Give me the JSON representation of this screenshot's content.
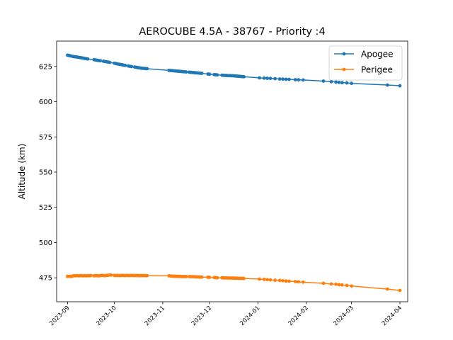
{
  "chart_data": {
    "type": "line",
    "title": "AEROCUBE 4.5A - 38767 - Priority :4",
    "xlabel": "",
    "ylabel": "Altitude (km)",
    "xlim": [
      "2023-08-25",
      "2024-04-06"
    ],
    "ylim": [
      458,
      643
    ],
    "x_ticks": [
      "2023-09",
      "2023-10",
      "2023-11",
      "2023-12",
      "2024-01",
      "2024-02",
      "2024-03",
      "2024-04"
    ],
    "y_ticks": [
      475,
      500,
      525,
      550,
      575,
      600,
      625
    ],
    "grid": false,
    "legend_position": "top-right",
    "series": [
      {
        "name": "Apogee",
        "color": "#1f77b4",
        "marker": "circle",
        "points": [
          [
            "2023-09-01",
            633.0
          ],
          [
            "2023-09-02",
            632.8
          ],
          [
            "2023-09-03",
            632.5
          ],
          [
            "2023-09-04",
            632.2
          ],
          [
            "2023-09-05",
            632.0
          ],
          [
            "2023-09-06",
            631.8
          ],
          [
            "2023-09-07",
            631.7
          ],
          [
            "2023-09-08",
            631.5
          ],
          [
            "2023-09-09",
            631.3
          ],
          [
            "2023-09-10",
            631.1
          ],
          [
            "2023-09-11",
            630.9
          ],
          [
            "2023-09-12",
            630.7
          ],
          [
            "2023-09-13",
            630.5
          ],
          [
            "2023-09-14",
            630.3
          ],
          [
            "2023-09-18",
            629.8
          ],
          [
            "2023-09-19",
            629.6
          ],
          [
            "2023-09-20",
            629.4
          ],
          [
            "2023-09-21",
            629.2
          ],
          [
            "2023-09-22",
            629.0
          ],
          [
            "2023-09-24",
            628.7
          ],
          [
            "2023-09-25",
            628.5
          ],
          [
            "2023-09-26",
            628.3
          ],
          [
            "2023-09-27",
            628.1
          ],
          [
            "2023-09-28",
            627.9
          ],
          [
            "2023-10-01",
            627.3
          ],
          [
            "2023-10-02",
            627.0
          ],
          [
            "2023-10-03",
            626.8
          ],
          [
            "2023-10-04",
            626.6
          ],
          [
            "2023-10-05",
            626.4
          ],
          [
            "2023-10-06",
            626.2
          ],
          [
            "2023-10-07",
            625.9
          ],
          [
            "2023-10-08",
            625.7
          ],
          [
            "2023-10-10",
            625.3
          ],
          [
            "2023-10-11",
            625.1
          ],
          [
            "2023-10-12",
            624.9
          ],
          [
            "2023-10-14",
            624.6
          ],
          [
            "2023-10-15",
            624.4
          ],
          [
            "2023-10-16",
            624.2
          ],
          [
            "2023-10-17",
            624.0
          ],
          [
            "2023-10-18",
            623.8
          ],
          [
            "2023-10-19",
            623.7
          ],
          [
            "2023-10-20",
            623.6
          ],
          [
            "2023-10-21",
            623.5
          ],
          [
            "2023-10-22",
            623.4
          ],
          [
            "2023-11-05",
            622.2
          ],
          [
            "2023-11-06",
            622.1
          ],
          [
            "2023-11-07",
            622.0
          ],
          [
            "2023-11-08",
            621.9
          ],
          [
            "2023-11-09",
            621.8
          ],
          [
            "2023-11-10",
            621.7
          ],
          [
            "2023-11-11",
            621.6
          ],
          [
            "2023-11-12",
            621.5
          ],
          [
            "2023-11-13",
            621.4
          ],
          [
            "2023-11-14",
            621.3
          ],
          [
            "2023-11-15",
            621.2
          ],
          [
            "2023-11-16",
            621.1
          ],
          [
            "2023-11-18",
            620.9
          ],
          [
            "2023-11-19",
            620.8
          ],
          [
            "2023-11-20",
            620.7
          ],
          [
            "2023-11-21",
            620.6
          ],
          [
            "2023-11-22",
            620.5
          ],
          [
            "2023-11-23",
            620.4
          ],
          [
            "2023-11-24",
            620.3
          ],
          [
            "2023-11-25",
            620.2
          ],
          [
            "2023-11-26",
            620.1
          ],
          [
            "2023-11-30",
            619.6
          ],
          [
            "2023-12-01",
            619.5
          ],
          [
            "2023-12-04",
            619.2
          ],
          [
            "2023-12-05",
            619.1
          ],
          [
            "2023-12-06",
            619.0
          ],
          [
            "2023-12-09",
            618.8
          ],
          [
            "2023-12-10",
            618.7
          ],
          [
            "2023-12-11",
            618.6
          ],
          [
            "2023-12-12",
            618.6
          ],
          [
            "2023-12-13",
            618.5
          ],
          [
            "2023-12-14",
            618.5
          ],
          [
            "2023-12-15",
            618.4
          ],
          [
            "2023-12-16",
            618.4
          ],
          [
            "2023-12-17",
            618.3
          ],
          [
            "2023-12-18",
            618.2
          ],
          [
            "2023-12-19",
            618.1
          ],
          [
            "2023-12-20",
            618.0
          ],
          [
            "2023-12-21",
            617.9
          ],
          [
            "2023-12-22",
            617.8
          ],
          [
            "2023-12-23",
            617.7
          ],
          [
            "2024-01-02",
            616.9
          ],
          [
            "2024-01-05",
            616.7
          ],
          [
            "2024-01-07",
            616.6
          ],
          [
            "2024-01-09",
            616.5
          ],
          [
            "2024-01-12",
            616.3
          ],
          [
            "2024-01-15",
            616.1
          ],
          [
            "2024-01-17",
            616.0
          ],
          [
            "2024-01-19",
            615.9
          ],
          [
            "2024-01-21",
            615.8
          ],
          [
            "2024-01-25",
            615.6
          ],
          [
            "2024-01-27",
            615.5
          ],
          [
            "2024-01-30",
            615.4
          ],
          [
            "2024-02-12",
            614.6
          ],
          [
            "2024-02-17",
            614.2
          ],
          [
            "2024-02-20",
            613.9
          ],
          [
            "2024-02-22",
            613.7
          ],
          [
            "2024-02-24",
            613.5
          ],
          [
            "2024-02-27",
            613.3
          ],
          [
            "2024-03-01",
            613.0
          ],
          [
            "2024-03-24",
            611.8
          ],
          [
            "2024-04-01",
            611.3
          ]
        ]
      },
      {
        "name": "Perigee",
        "color": "#ff7f0e",
        "marker": "circle",
        "points": [
          [
            "2023-09-01",
            476.0
          ],
          [
            "2023-09-02",
            476.1
          ],
          [
            "2023-09-03",
            476.0
          ],
          [
            "2023-09-04",
            476.1
          ],
          [
            "2023-09-05",
            476.5
          ],
          [
            "2023-09-06",
            476.4
          ],
          [
            "2023-09-07",
            476.5
          ],
          [
            "2023-09-08",
            476.4
          ],
          [
            "2023-09-09",
            476.5
          ],
          [
            "2023-09-10",
            476.5
          ],
          [
            "2023-09-11",
            476.4
          ],
          [
            "2023-09-12",
            476.5
          ],
          [
            "2023-09-13",
            476.4
          ],
          [
            "2023-09-14",
            476.5
          ],
          [
            "2023-09-15",
            476.5
          ],
          [
            "2023-09-16",
            476.6
          ],
          [
            "2023-09-18",
            476.4
          ],
          [
            "2023-09-19",
            476.5
          ],
          [
            "2023-09-20",
            476.5
          ],
          [
            "2023-09-21",
            476.4
          ],
          [
            "2023-09-22",
            476.6
          ],
          [
            "2023-09-23",
            476.7
          ],
          [
            "2023-09-24",
            476.6
          ],
          [
            "2023-09-25",
            476.5
          ],
          [
            "2023-09-26",
            476.7
          ],
          [
            "2023-09-27",
            476.8
          ],
          [
            "2023-09-28",
            477.0
          ],
          [
            "2023-09-29",
            476.9
          ],
          [
            "2023-10-01",
            476.7
          ],
          [
            "2023-10-02",
            476.6
          ],
          [
            "2023-10-03",
            476.7
          ],
          [
            "2023-10-04",
            476.6
          ],
          [
            "2023-10-05",
            476.6
          ],
          [
            "2023-10-06",
            476.7
          ],
          [
            "2023-10-07",
            476.6
          ],
          [
            "2023-10-08",
            476.6
          ],
          [
            "2023-10-09",
            476.7
          ],
          [
            "2023-10-10",
            476.6
          ],
          [
            "2023-10-11",
            476.6
          ],
          [
            "2023-10-12",
            476.7
          ],
          [
            "2023-10-13",
            476.6
          ],
          [
            "2023-10-14",
            476.6
          ],
          [
            "2023-10-15",
            476.6
          ],
          [
            "2023-10-16",
            476.6
          ],
          [
            "2023-10-17",
            476.5
          ],
          [
            "2023-10-18",
            476.6
          ],
          [
            "2023-10-19",
            476.5
          ],
          [
            "2023-10-20",
            476.6
          ],
          [
            "2023-10-21",
            476.5
          ],
          [
            "2023-10-22",
            476.5
          ],
          [
            "2023-11-05",
            476.4
          ],
          [
            "2023-11-06",
            476.3
          ],
          [
            "2023-11-07",
            476.2
          ],
          [
            "2023-11-08",
            476.1
          ],
          [
            "2023-11-09",
            476.1
          ],
          [
            "2023-11-10",
            476.0
          ],
          [
            "2023-11-11",
            476.0
          ],
          [
            "2023-11-12",
            476.0
          ],
          [
            "2023-11-13",
            475.9
          ],
          [
            "2023-11-14",
            475.9
          ],
          [
            "2023-11-15",
            475.9
          ],
          [
            "2023-11-16",
            475.9
          ],
          [
            "2023-11-18",
            475.9
          ],
          [
            "2023-11-19",
            475.8
          ],
          [
            "2023-11-20",
            475.8
          ],
          [
            "2023-11-21",
            475.8
          ],
          [
            "2023-11-22",
            475.7
          ],
          [
            "2023-11-23",
            475.6
          ],
          [
            "2023-11-24",
            475.6
          ],
          [
            "2023-11-25",
            475.5
          ],
          [
            "2023-11-26",
            475.5
          ],
          [
            "2023-11-30",
            475.4
          ],
          [
            "2023-12-01",
            475.3
          ],
          [
            "2023-12-04",
            475.2
          ],
          [
            "2023-12-05",
            475.1
          ],
          [
            "2023-12-06",
            475.0
          ],
          [
            "2023-12-09",
            475.0
          ],
          [
            "2023-12-10",
            474.9
          ],
          [
            "2023-12-11",
            474.9
          ],
          [
            "2023-12-12",
            474.9
          ],
          [
            "2023-12-13",
            474.8
          ],
          [
            "2023-12-14",
            474.8
          ],
          [
            "2023-12-15",
            474.8
          ],
          [
            "2023-12-16",
            474.8
          ],
          [
            "2023-12-17",
            474.7
          ],
          [
            "2023-12-18",
            474.7
          ],
          [
            "2023-12-19",
            474.7
          ],
          [
            "2023-12-20",
            474.6
          ],
          [
            "2023-12-21",
            474.6
          ],
          [
            "2023-12-22",
            474.6
          ],
          [
            "2023-12-23",
            474.5
          ],
          [
            "2024-01-02",
            474.1
          ],
          [
            "2024-01-05",
            473.9
          ],
          [
            "2024-01-07",
            473.7
          ],
          [
            "2024-01-09",
            473.5
          ],
          [
            "2024-01-12",
            473.3
          ],
          [
            "2024-01-15",
            473.1
          ],
          [
            "2024-01-17",
            472.9
          ],
          [
            "2024-01-19",
            472.7
          ],
          [
            "2024-01-21",
            472.6
          ],
          [
            "2024-01-25",
            472.3
          ],
          [
            "2024-01-27",
            472.1
          ],
          [
            "2024-01-30",
            471.9
          ],
          [
            "2024-02-12",
            471.1
          ],
          [
            "2024-02-17",
            470.6
          ],
          [
            "2024-02-20",
            470.4
          ],
          [
            "2024-02-22",
            470.1
          ],
          [
            "2024-02-24",
            469.9
          ],
          [
            "2024-02-27",
            469.6
          ],
          [
            "2024-03-01",
            469.2
          ],
          [
            "2024-03-24",
            467.0
          ],
          [
            "2024-04-01",
            466.0
          ]
        ]
      }
    ]
  }
}
